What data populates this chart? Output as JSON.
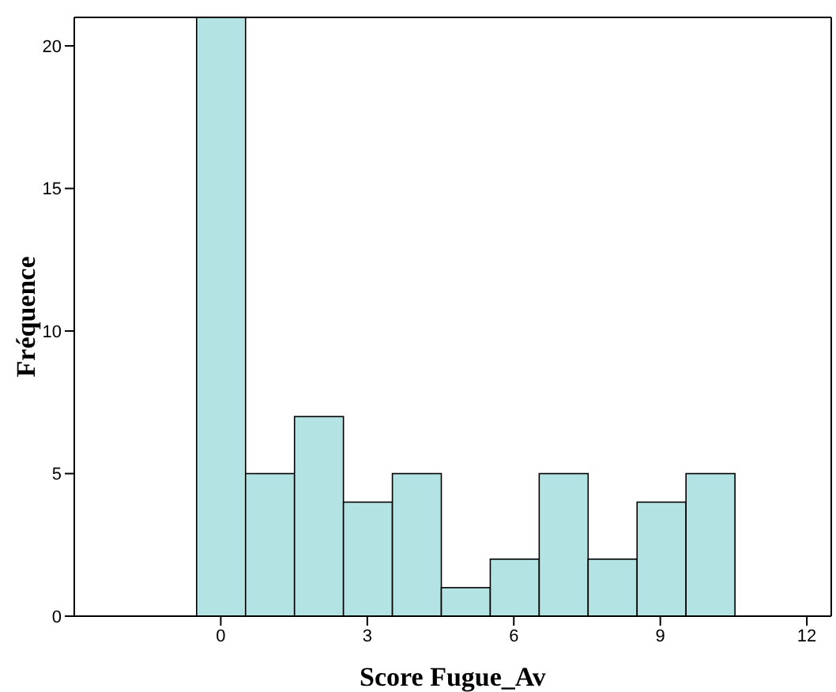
{
  "chart_data": {
    "type": "histogram",
    "xlabel": "Score Fugue_Av",
    "ylabel": "Fréquence",
    "bins": [
      -0.5,
      0.5,
      1.5,
      2.5,
      3.5,
      4.5,
      5.5,
      6.5,
      7.5,
      8.5,
      9.5,
      10.5
    ],
    "values": [
      21,
      5,
      7,
      4,
      5,
      1,
      2,
      5,
      2,
      4,
      5
    ],
    "color": "#b3e3e3",
    "xlim": [
      -3,
      12.5
    ],
    "xticks": [
      0,
      3,
      6,
      9,
      12
    ],
    "ylim": [
      0,
      21
    ],
    "yticks": [
      0,
      5,
      10,
      15,
      20
    ],
    "grid": false,
    "legend": false
  }
}
